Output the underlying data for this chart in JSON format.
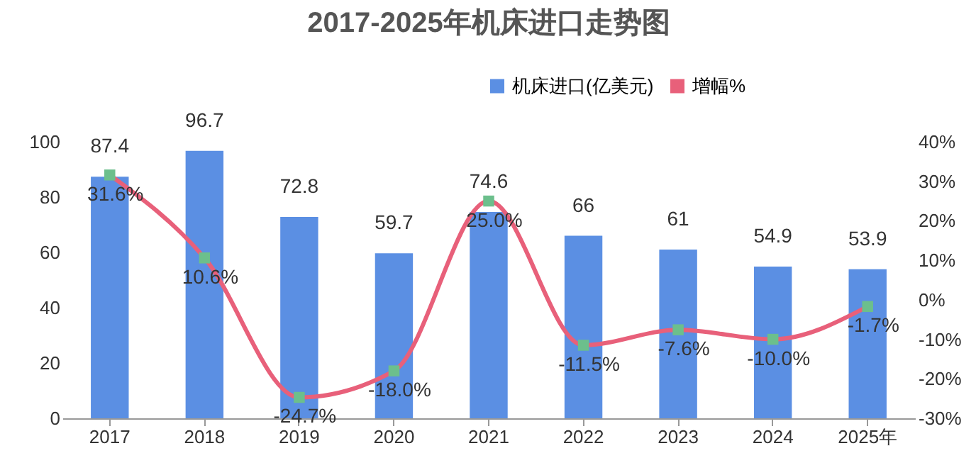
{
  "chart_data": {
    "type": "bar",
    "title": "2017-2025年机床进口走势图",
    "categories": [
      "2017",
      "2018",
      "2019",
      "2020",
      "2021",
      "2022",
      "2023",
      "2024",
      "2025年"
    ],
    "series": [
      {
        "name": "机床进口(亿美元)",
        "color": "#5b8fe3",
        "values": [
          87.4,
          96.7,
          72.8,
          59.7,
          74.6,
          66,
          61,
          54.9,
          53.9
        ],
        "value_labels": [
          "87.4",
          "96.7",
          "72.8",
          "59.7",
          "74.6",
          "66",
          "61",
          "54.9",
          "53.9"
        ]
      },
      {
        "name": "增幅%",
        "type": "line",
        "axis": "y2",
        "color": "#e8607a",
        "colors": [
          "#6cbf8c",
          "#6cbf8c",
          "#6cbf8c",
          "#6cbf8c",
          "#6cbf8c",
          "#6cbf8c",
          "#6cbf8c",
          "#6cbf8c",
          "#6cbf8c"
        ],
        "marker": "square",
        "values": [
          31.6,
          10.6,
          -24.7,
          -18.0,
          25.0,
          -11.5,
          -7.6,
          -10.0,
          -1.7
        ],
        "value_labels": [
          "31.6%",
          "10.6%",
          "-24.7%",
          "-18.0%",
          "25.0%",
          "-11.5%",
          "-7.6%",
          "-10.0%",
          "-1.7%"
        ]
      }
    ],
    "ylim": [
      0,
      100
    ],
    "yticks": [
      0,
      20,
      40,
      60,
      80,
      100
    ],
    "y2lim": [
      -30,
      40
    ],
    "y2ticks": [
      {
        "value": -30,
        "label": "-30%"
      },
      {
        "value": -20,
        "label": "-20%"
      },
      {
        "value": -10,
        "label": "-10%"
      },
      {
        "value": 0,
        "label": "0%"
      },
      {
        "value": 10,
        "label": "10%"
      },
      {
        "value": 20,
        "label": "20%"
      },
      {
        "value": 30,
        "label": "30%"
      },
      {
        "value": 40,
        "label": "40%"
      }
    ],
    "legend": "top right"
  }
}
